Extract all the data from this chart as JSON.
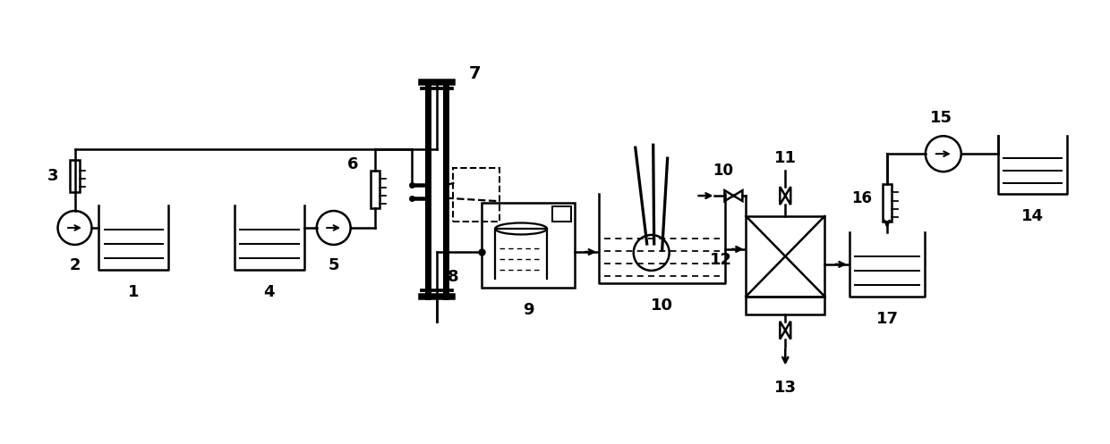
{
  "bg_color": "#ffffff",
  "lc": "#000000",
  "lw": 1.8,
  "fig_w": 12.4,
  "fig_h": 4.97,
  "xlim": [
    0,
    12.4
  ],
  "ylim": [
    0,
    4.97
  ]
}
